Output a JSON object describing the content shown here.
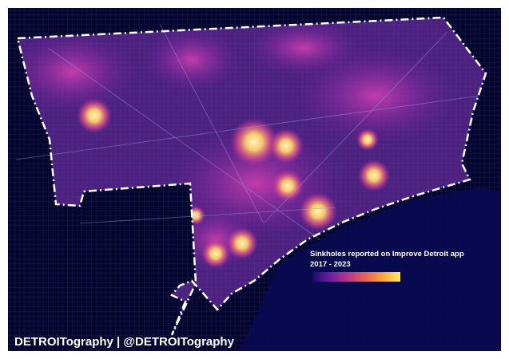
{
  "legend": {
    "title": "Sinkholes reported on Improve Detroit app",
    "years": "2017 - 2023",
    "colorscale": [
      "#1a0a6b",
      "#6a1fa0",
      "#b8348d",
      "#e6625a",
      "#f9a53a",
      "#fce96a"
    ]
  },
  "credit": "DETROITography | @DETROITography",
  "colors": {
    "background": "#05062a",
    "boundary": "#ffffff",
    "heat_low": "#8a2aa8",
    "heat_high": "#fce96a"
  }
}
